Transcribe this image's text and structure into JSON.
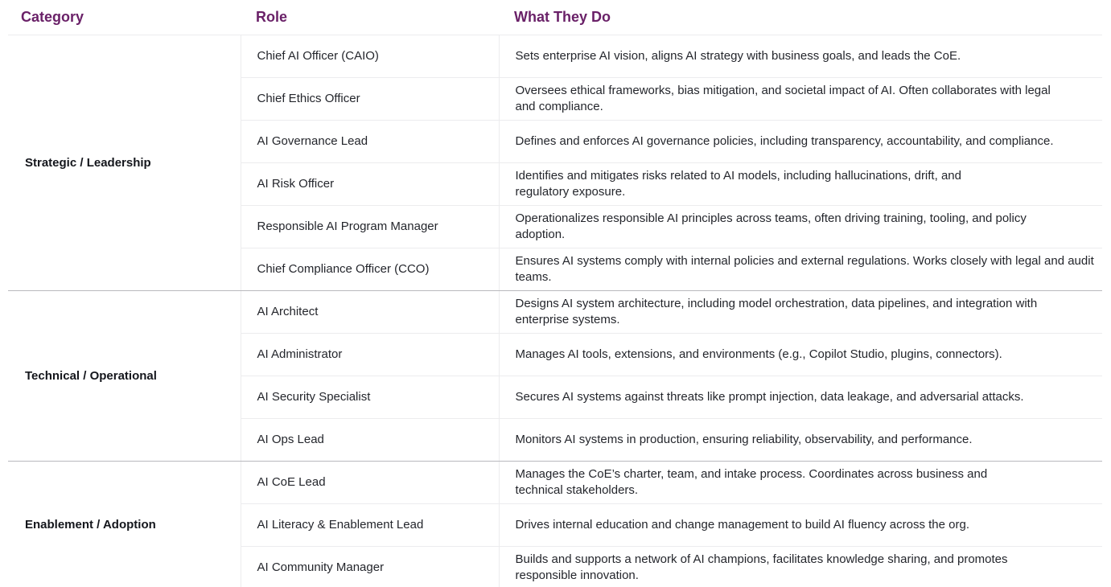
{
  "headers": {
    "category": "Category",
    "role": "Role",
    "description": "What They Do"
  },
  "groups": [
    {
      "category": "Strategic / Leadership",
      "rows": [
        {
          "role": "Chief AI Officer (CAIO)",
          "description": "Sets enterprise AI vision, aligns AI strategy with business goals, and leads the CoE."
        },
        {
          "role": "Chief Ethics Officer",
          "description": "Oversees ethical frameworks, bias mitigation, and societal impact of AI. Often collaborates with legal and compliance."
        },
        {
          "role": "AI Governance Lead",
          "description": "Defines and enforces AI governance policies, including transparency, accountability, and compliance."
        },
        {
          "role": "AI Risk Officer",
          "description": "Identifies and mitigates risks related to AI models, including hallucinations, drift, and regulatory exposure."
        },
        {
          "role": "Responsible AI Program Manager",
          "description": "Operationalizes responsible AI principles across teams, often driving training, tooling, and policy adoption."
        },
        {
          "role": "Chief Compliance Officer (CCO)",
          "description": "Ensures AI systems comply with internal policies and external regulations. Works closely with legal and audit teams."
        }
      ]
    },
    {
      "category": "Technical / Operational",
      "rows": [
        {
          "role": "AI Architect",
          "description": "Designs AI system architecture, including model orchestration, data pipelines, and integration with enterprise systems."
        },
        {
          "role": "AI Administrator",
          "description": "Manages AI tools, extensions, and environments (e.g., Copilot Studio, plugins, connectors)."
        },
        {
          "role": "AI Security Specialist",
          "description": "Secures AI systems against threats like prompt injection, data leakage, and adversarial attacks."
        },
        {
          "role": "AI Ops Lead",
          "description": "Monitors AI systems in production, ensuring reliability, observability, and performance."
        }
      ]
    },
    {
      "category": "Enablement / Adoption",
      "rows": [
        {
          "role": "AI CoE Lead",
          "description": "Manages the CoE’s charter, team, and intake process. Coordinates across business and technical stakeholders."
        },
        {
          "role": "AI Literacy & Enablement Lead",
          "description": "Drives internal education and change management to build AI fluency across the org."
        },
        {
          "role": "AI Community Manager",
          "description": "Builds and supports a network of AI champions, facilitates knowledge sharing, and promotes responsible innovation."
        }
      ]
    }
  ]
}
